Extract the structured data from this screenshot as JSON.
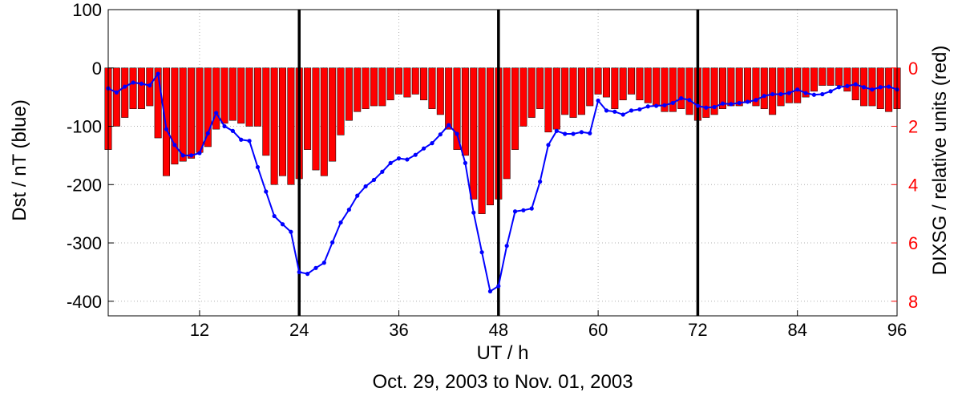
{
  "chart_data": {
    "type": "bar+line",
    "title": "",
    "xlabel": "UT / h",
    "caption": "Oct. 29, 2003 to Nov. 01, 2003",
    "ylabel_left": "Dst / nT (blue)",
    "ylabel_right": "DIXSG / relative units (red)",
    "xlim": [
      1,
      96
    ],
    "ylim_left": [
      -425,
      100
    ],
    "ylim_right_inverted": [
      8.5,
      -2
    ],
    "grid": true,
    "x_ticks": [
      12,
      24,
      36,
      48,
      60,
      72,
      84,
      96
    ],
    "y_left_ticks": [
      100,
      0,
      -100,
      -200,
      -300,
      -400
    ],
    "y_right_ticks": [
      0,
      2,
      4,
      6,
      8
    ],
    "vertical_markers": [
      24,
      48,
      72
    ],
    "colors": {
      "line": "#0000ff",
      "bars": "#ff0000",
      "bar_edge": "#000000",
      "right_axis": "#ff0000",
      "markers": "#000000"
    },
    "series": [
      {
        "role": "Dst (blue line, left axis)",
        "x": [
          1,
          2,
          3,
          4,
          5,
          6,
          7,
          8,
          9,
          10,
          11,
          12,
          13,
          14,
          15,
          16,
          17,
          18,
          19,
          20,
          21,
          22,
          23,
          24,
          25,
          26,
          27,
          28,
          29,
          30,
          31,
          32,
          33,
          34,
          35,
          36,
          37,
          38,
          39,
          40,
          41,
          42,
          43,
          44,
          45,
          46,
          47,
          48,
          49,
          50,
          51,
          52,
          53,
          54,
          55,
          56,
          57,
          58,
          59,
          60,
          61,
          62,
          63,
          64,
          65,
          66,
          67,
          68,
          69,
          70,
          71,
          72,
          73,
          74,
          75,
          76,
          77,
          78,
          79,
          80,
          81,
          82,
          83,
          84,
          85,
          86,
          87,
          88,
          89,
          90,
          91,
          92,
          93,
          94,
          95,
          96
        ],
        "values": [
          -35,
          -42,
          -32,
          -25,
          -27,
          -30,
          -10,
          -105,
          -132,
          -150,
          -150,
          -146,
          -112,
          -77,
          -100,
          -108,
          -123,
          -125,
          -170,
          -212,
          -254,
          -268,
          -281,
          -350,
          -353,
          -343,
          -334,
          -299,
          -265,
          -243,
          -219,
          -203,
          -192,
          -178,
          -163,
          -155,
          -157,
          -149,
          -138,
          -129,
          -114,
          -98,
          -113,
          -163,
          -248,
          -316,
          -383,
          -374,
          -305,
          -246,
          -244,
          -241,
          -195,
          -132,
          -108,
          -113,
          -113,
          -110,
          -112,
          -56,
          -73,
          -75,
          -80,
          -73,
          -71,
          -66,
          -65,
          -64,
          -60,
          -52,
          -55,
          -65,
          -68,
          -67,
          -61,
          -62,
          -60,
          -58,
          -55,
          -48,
          -45,
          -45,
          -43,
          -37,
          -43,
          -46,
          -45,
          -40,
          -33,
          -31,
          -28,
          -33,
          -37,
          -33,
          -32,
          -37
        ]
      },
      {
        "role": "DIXSG (red bars, right axis, inverted)",
        "x": [
          1,
          2,
          3,
          4,
          5,
          6,
          7,
          8,
          9,
          10,
          11,
          12,
          13,
          14,
          15,
          16,
          17,
          18,
          19,
          20,
          21,
          22,
          23,
          24,
          25,
          26,
          27,
          28,
          29,
          30,
          31,
          32,
          33,
          34,
          35,
          36,
          37,
          38,
          39,
          40,
          41,
          42,
          43,
          44,
          45,
          46,
          47,
          48,
          49,
          50,
          51,
          52,
          53,
          54,
          55,
          56,
          57,
          58,
          59,
          60,
          61,
          62,
          63,
          64,
          65,
          66,
          67,
          68,
          69,
          70,
          71,
          72,
          73,
          74,
          75,
          76,
          77,
          78,
          79,
          80,
          81,
          82,
          83,
          84,
          85,
          86,
          87,
          88,
          89,
          90,
          91,
          92,
          93,
          94,
          95,
          96
        ],
        "values": [
          2.8,
          2.0,
          1.7,
          1.4,
          1.4,
          1.3,
          2.4,
          3.7,
          3.3,
          3.2,
          3.1,
          2.9,
          2.7,
          2.1,
          1.9,
          1.8,
          1.9,
          2.0,
          2.0,
          3.0,
          4.0,
          3.7,
          4.0,
          3.8,
          2.8,
          3.5,
          3.7,
          3.2,
          2.3,
          1.8,
          1.5,
          1.4,
          1.3,
          1.3,
          1.1,
          0.9,
          1.0,
          0.9,
          1.1,
          1.4,
          1.6,
          2.1,
          2.8,
          3.0,
          4.5,
          5.0,
          4.7,
          4.5,
          3.8,
          2.8,
          2.0,
          1.7,
          1.4,
          2.2,
          2.1,
          1.6,
          1.7,
          1.6,
          1.3,
          0.9,
          1.0,
          1.4,
          1.1,
          0.9,
          1.1,
          1.2,
          1.3,
          1.5,
          1.5,
          1.4,
          1.6,
          1.8,
          1.7,
          1.6,
          1.4,
          1.3,
          1.3,
          1.2,
          1.3,
          1.4,
          1.6,
          1.3,
          1.2,
          1.2,
          1.0,
          0.8,
          0.6,
          0.6,
          0.6,
          0.8,
          1.1,
          1.3,
          1.3,
          1.4,
          1.5,
          1.4
        ]
      }
    ]
  }
}
